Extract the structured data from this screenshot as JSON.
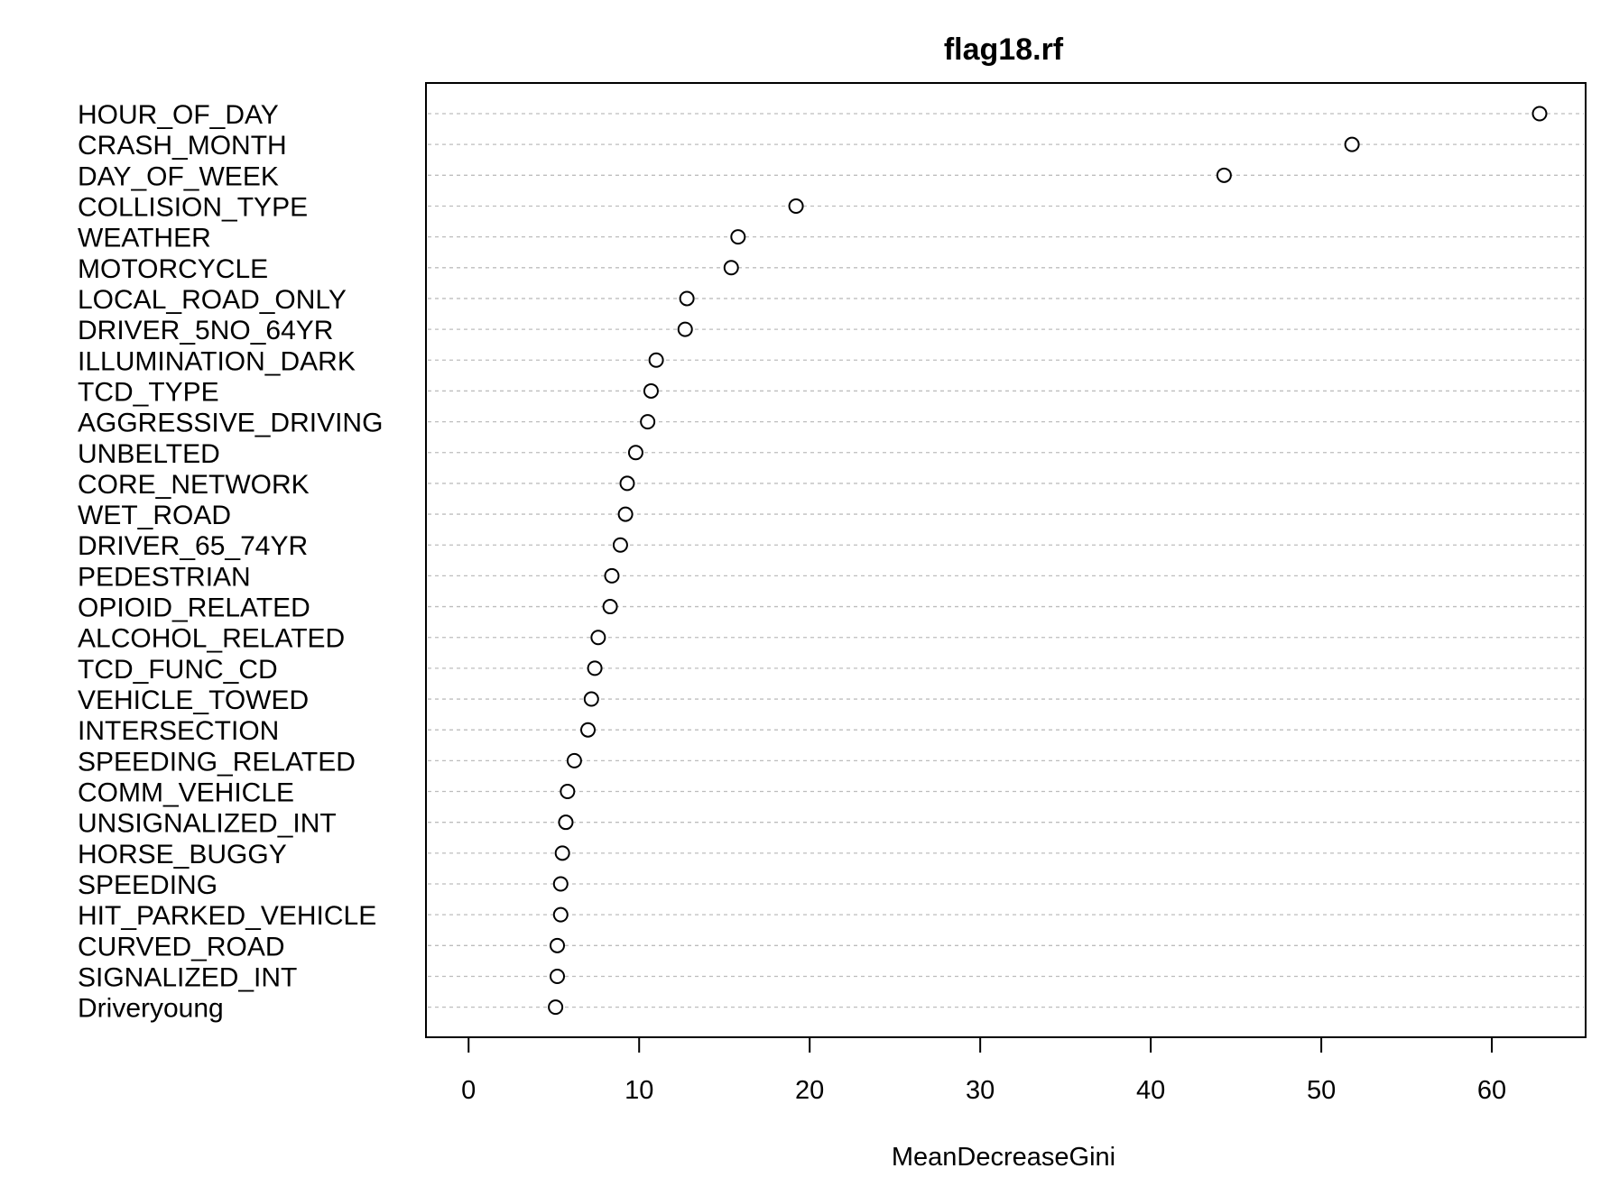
{
  "chart_data": {
    "type": "scatter",
    "title": "flag18.rf",
    "xlabel": "MeanDecreaseGini",
    "ylabel": "",
    "xlim": [
      -2.5,
      65.5
    ],
    "xticks": [
      "0",
      "10",
      "20",
      "30",
      "40",
      "50",
      "60"
    ],
    "grid": "horizontal dashed",
    "point_style": "open circle",
    "categories": [
      "HOUR_OF_DAY",
      "CRASH_MONTH",
      "DAY_OF_WEEK",
      "COLLISION_TYPE",
      "WEATHER",
      "MOTORCYCLE",
      "LOCAL_ROAD_ONLY",
      "DRIVER_5NO_64YR",
      "ILLUMINATION_DARK",
      "TCD_TYPE",
      "AGGRESSIVE_DRIVING",
      "UNBELTED",
      "CORE_NETWORK",
      "WET_ROAD",
      "DRIVER_65_74YR",
      "PEDESTRIAN",
      "OPIOID_RELATED",
      "ALCOHOL_RELATED",
      "TCD_FUNC_CD",
      "VEHICLE_TOWED",
      "INTERSECTION",
      "SPEEDING_RELATED",
      "COMM_VEHICLE",
      "UNSIGNALIZED_INT",
      "HORSE_BUGGY",
      "SPEEDING",
      "HIT_PARKED_VEHICLE",
      "CURVED_ROAD",
      "SIGNALIZED_INT",
      "Driveryoung"
    ],
    "values": [
      62.8,
      51.8,
      44.3,
      19.2,
      15.8,
      15.4,
      12.8,
      12.7,
      11.0,
      10.7,
      10.5,
      9.8,
      9.3,
      9.2,
      8.9,
      8.4,
      8.3,
      7.6,
      7.4,
      7.2,
      7.0,
      6.2,
      5.8,
      5.7,
      5.5,
      5.4,
      5.4,
      5.2,
      5.2,
      5.1
    ]
  }
}
